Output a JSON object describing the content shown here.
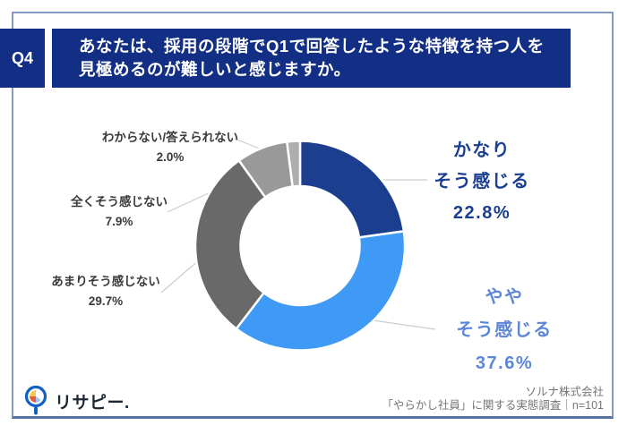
{
  "header": {
    "q_label": "Q4",
    "title_line1": "あなたは、採用の段階でQ1で回答したような特徴を持つ人を",
    "title_line2": "見極めるのが難しいと感じますか。"
  },
  "chart_data": {
    "type": "pie",
    "subtype": "donut",
    "direction": "clockwise",
    "start_angle_deg": 0,
    "legend_position": "callouts",
    "segments": [
      {
        "label": "かなりそう感じる",
        "label_lines": [
          "かなり",
          "そう感じる"
        ],
        "value": 22.8,
        "pct_label": "22.8%",
        "color": "#1b3e8e"
      },
      {
        "label": "ややそう感じる",
        "label_lines": [
          "やや",
          "そう感じる"
        ],
        "value": 37.6,
        "pct_label": "37.6%",
        "color": "#3e9af4"
      },
      {
        "label": "あまりそう感じない",
        "value": 29.7,
        "pct_label": "29.7%",
        "color": "#696969"
      },
      {
        "label": "全くそう感じない",
        "value": 7.9,
        "pct_label": "7.9%",
        "color": "#999999"
      },
      {
        "label": "わからない/答えられない",
        "value": 2.0,
        "pct_label": "2.0%",
        "color": "#aeaeae"
      }
    ]
  },
  "footer": {
    "logo_text": "リサピー.",
    "credit_line1": "ソルナ株式会社",
    "credit_line2": "「やらかし社員」に関する実態調査｜n=101"
  },
  "colors": {
    "banner_navy": "#122e85",
    "frame_border": "#8699c0",
    "kanari_text": "#1a3e90",
    "yaya_text": "#5e86d8",
    "logo_ring_blue": "#1261c4",
    "logo_pie_yellow": "#f3c84b",
    "logo_pie_red": "#e25c4a"
  }
}
